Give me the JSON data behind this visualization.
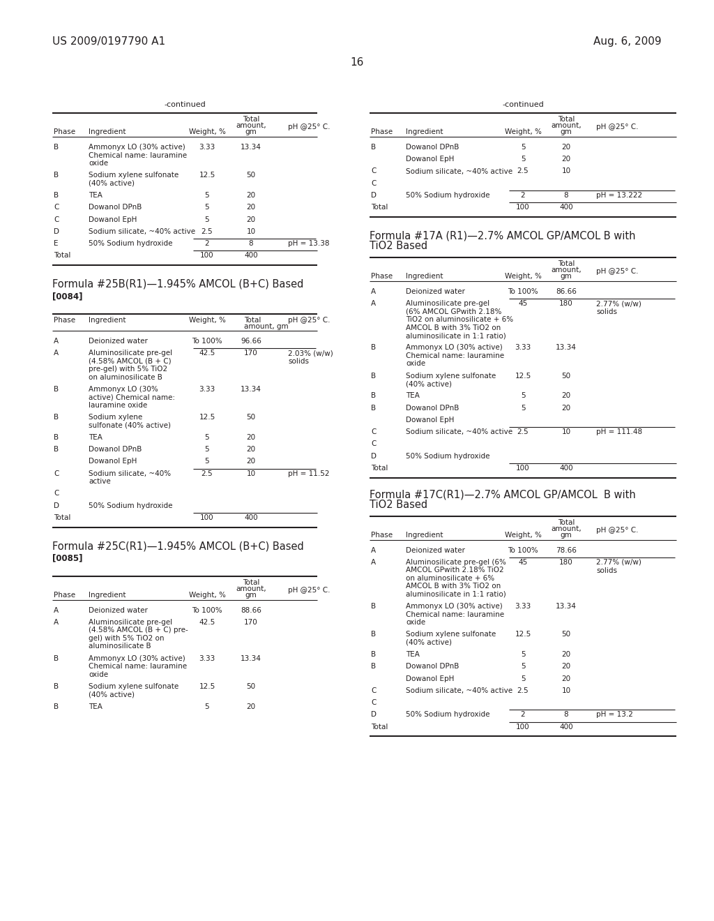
{
  "page_number": "16",
  "patent_left": "US 2009/0197790 A1",
  "patent_right": "Aug. 6, 2009",
  "background_color": "#ffffff",
  "text_color": "#231f20",
  "line_color": "#231f20"
}
